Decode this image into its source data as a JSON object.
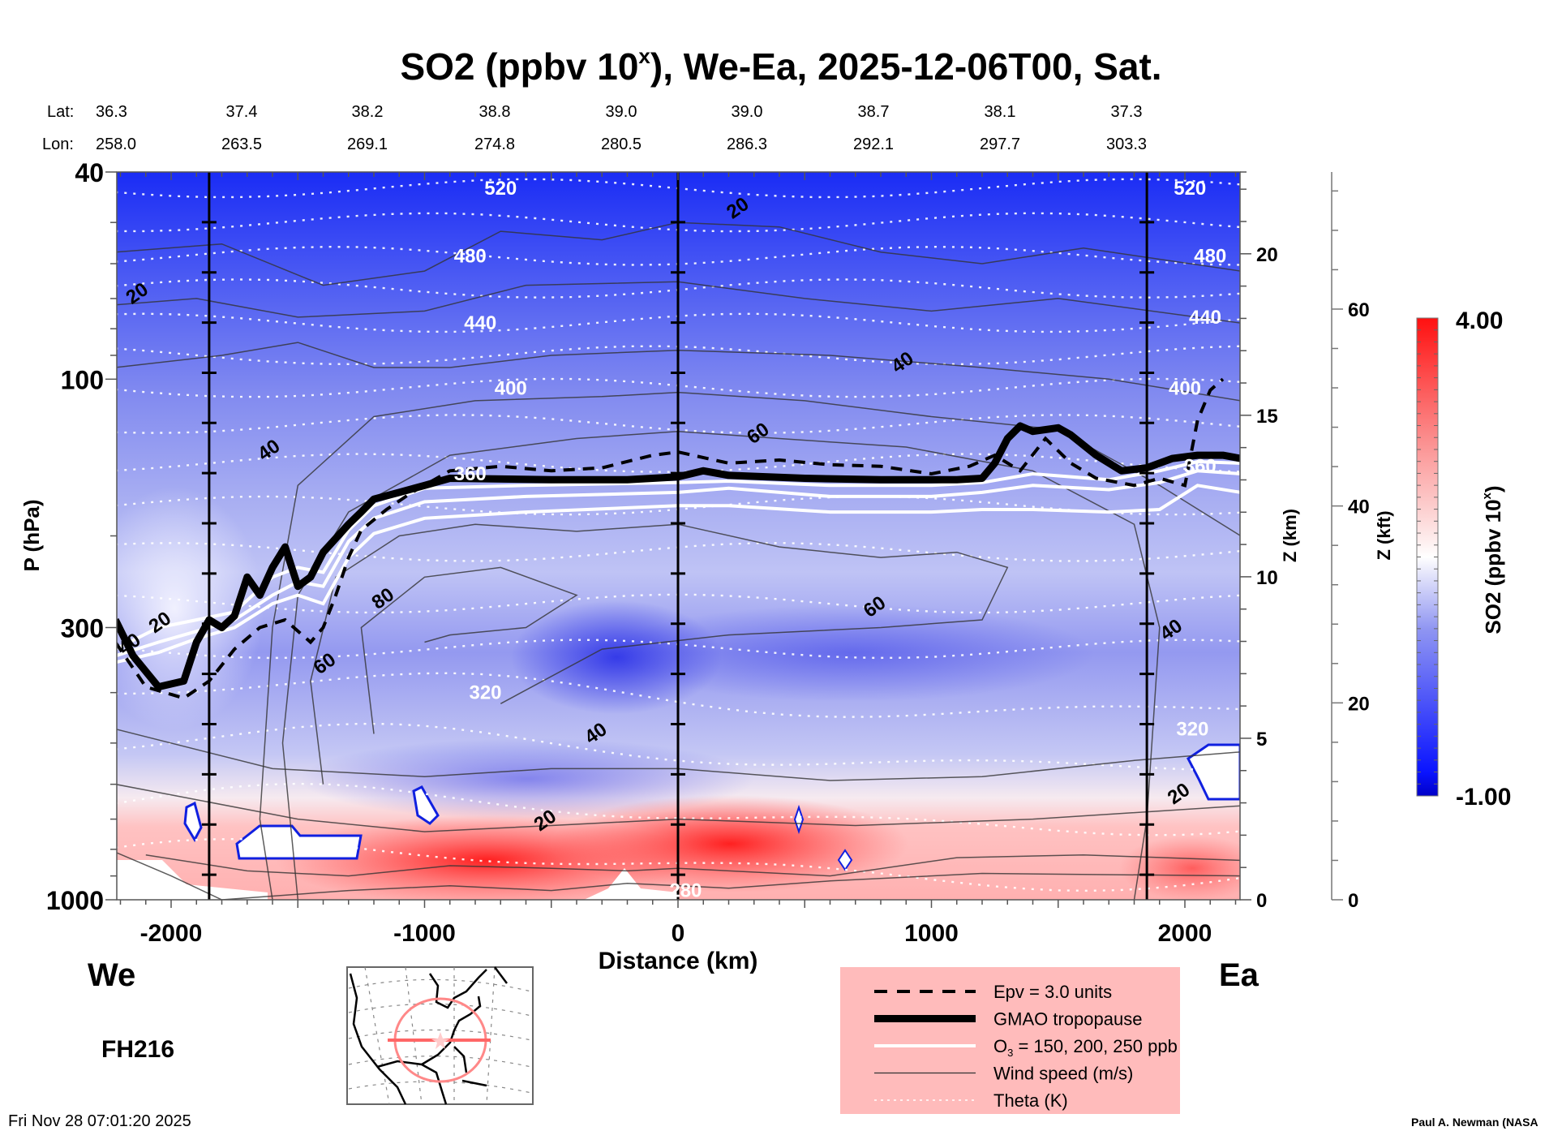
{
  "chart_data": {
    "type": "heatmap",
    "title": "SO2 (ppbv 10",
    "title_superscript": "x",
    "title_suffix": "), We-Ea, 2025-12-06T00, Sat.",
    "xlabel": "Distance (km)",
    "ylabel": "P (hPa)",
    "y2label": "Z (km)",
    "y3label": "Z (kft)",
    "xlim": [
      -2220,
      2220
    ],
    "ylim_hpa": [
      1000,
      40
    ],
    "yscale": "log",
    "x_ticks": [
      {
        "value": -2000,
        "label": "-2000"
      },
      {
        "value": -1000,
        "label": "-1000"
      },
      {
        "value": 0,
        "label": "0"
      },
      {
        "value": 1000,
        "label": "1000"
      },
      {
        "value": 2000,
        "label": "2000"
      }
    ],
    "y_ticks": [
      {
        "value": 40,
        "label": "40"
      },
      {
        "value": 100,
        "label": "100"
      },
      {
        "value": 300,
        "label": "300"
      },
      {
        "value": 1000,
        "label": "1000"
      }
    ],
    "z_km_ticks": [
      {
        "value": 0,
        "label": "0"
      },
      {
        "value": 5,
        "label": "5"
      },
      {
        "value": 10,
        "label": "10"
      },
      {
        "value": 15,
        "label": "15"
      },
      {
        "value": 20,
        "label": "20"
      }
    ],
    "z_kft_ticks": [
      {
        "value": 0,
        "label": "0"
      },
      {
        "value": 20,
        "label": "20"
      },
      {
        "value": 40,
        "label": "40"
      },
      {
        "value": 60,
        "label": "60"
      }
    ],
    "lat_lon_header": {
      "lat_label": "Lat:",
      "lon_label": "Lon:",
      "columns": [
        {
          "lat": "36.3",
          "lon": "258.0"
        },
        {
          "lat": "37.4",
          "lon": "263.5"
        },
        {
          "lat": "38.2",
          "lon": "269.1"
        },
        {
          "lat": "38.8",
          "lon": "274.8"
        },
        {
          "lat": "39.0",
          "lon": "280.5"
        },
        {
          "lat": "39.0",
          "lon": "286.3"
        },
        {
          "lat": "38.7",
          "lon": "292.1"
        },
        {
          "lat": "38.1",
          "lon": "297.7"
        },
        {
          "lat": "37.3",
          "lon": "303.3"
        }
      ]
    },
    "colorbar": {
      "label": "SO2 (ppbv 10",
      "label_superscript": "x",
      "label_suffix": ")",
      "min": -1.0,
      "max": 4.0,
      "min_label": "-1.00",
      "max_label": "4.00",
      "colors": {
        "low": "#0000ff",
        "mid": "#ffffff",
        "high": "#ff0000"
      }
    },
    "vertical_markers_km": [
      -1850,
      0,
      1850
    ],
    "tropopause": {
      "name": "GMAO tropopause",
      "points": [
        [
          -2220,
          290
        ],
        [
          -2150,
          340
        ],
        [
          -2050,
          390
        ],
        [
          -1950,
          380
        ],
        [
          -1900,
          320
        ],
        [
          -1850,
          290
        ],
        [
          -1800,
          300
        ],
        [
          -1750,
          285
        ],
        [
          -1700,
          240
        ],
        [
          -1650,
          260
        ],
        [
          -1600,
          230
        ],
        [
          -1550,
          210
        ],
        [
          -1500,
          250
        ],
        [
          -1450,
          240
        ],
        [
          -1400,
          215
        ],
        [
          -1300,
          190
        ],
        [
          -1250,
          180
        ],
        [
          -1200,
          170
        ],
        [
          -1100,
          165
        ],
        [
          -1000,
          160
        ],
        [
          -900,
          155
        ],
        [
          -500,
          156
        ],
        [
          -200,
          156
        ],
        [
          0,
          154
        ],
        [
          100,
          150
        ],
        [
          200,
          153
        ],
        [
          500,
          155
        ],
        [
          800,
          156
        ],
        [
          1100,
          156
        ],
        [
          1200,
          155
        ],
        [
          1250,
          145
        ],
        [
          1300,
          130
        ],
        [
          1350,
          123
        ],
        [
          1400,
          126
        ],
        [
          1500,
          124
        ],
        [
          1550,
          128
        ],
        [
          1650,
          140
        ],
        [
          1750,
          150
        ],
        [
          1850,
          148
        ],
        [
          1950,
          142
        ],
        [
          2050,
          140
        ],
        [
          2150,
          140
        ],
        [
          2220,
          142
        ]
      ]
    },
    "epv_contour": {
      "name": "Epv = 3.0 units",
      "points": [
        [
          -2220,
          320
        ],
        [
          -2100,
          390
        ],
        [
          -1950,
          410
        ],
        [
          -1850,
          380
        ],
        [
          -1750,
          330
        ],
        [
          -1650,
          300
        ],
        [
          -1550,
          290
        ],
        [
          -1450,
          320
        ],
        [
          -1400,
          300
        ],
        [
          -1350,
          260
        ],
        [
          -1300,
          220
        ],
        [
          -1250,
          195
        ],
        [
          -1150,
          178
        ],
        [
          -1050,
          165
        ],
        [
          -900,
          150
        ],
        [
          -700,
          147
        ],
        [
          -500,
          150
        ],
        [
          -300,
          148
        ],
        [
          -100,
          140
        ],
        [
          0,
          138
        ],
        [
          200,
          145
        ],
        [
          400,
          143
        ],
        [
          600,
          146
        ],
        [
          800,
          147
        ],
        [
          1000,
          152
        ],
        [
          1150,
          147
        ],
        [
          1250,
          140
        ],
        [
          1350,
          150
        ],
        [
          1450,
          130
        ],
        [
          1550,
          145
        ],
        [
          1650,
          155
        ],
        [
          1800,
          160
        ],
        [
          1900,
          155
        ],
        [
          2000,
          160
        ],
        [
          2050,
          120
        ],
        [
          2100,
          105
        ],
        [
          2150,
          100
        ]
      ]
    },
    "ozone_contours": {
      "name": "O3 = 150, 200, 250 ppb",
      "lines": [
        {
          "ppb": 150,
          "points": [
            [
              -2220,
              330
            ],
            [
              -2050,
              300
            ],
            [
              -1900,
              290
            ],
            [
              -1750,
              280
            ],
            [
              -1600,
              240
            ],
            [
              -1500,
              230
            ],
            [
              -1400,
              235
            ],
            [
              -1300,
              195
            ],
            [
              -1200,
              175
            ],
            [
              -1000,
              162
            ],
            [
              -600,
              160
            ],
            [
              0,
              158
            ],
            [
              200,
              157
            ],
            [
              600,
              160
            ],
            [
              1000,
              160
            ],
            [
              1200,
              158
            ],
            [
              1400,
              152
            ],
            [
              1700,
              156
            ],
            [
              1900,
              150
            ],
            [
              2050,
              144
            ],
            [
              2220,
              145
            ]
          ]
        },
        {
          "ppb": 200,
          "points": [
            [
              -2220,
              340
            ],
            [
              -2050,
              320
            ],
            [
              -1900,
              305
            ],
            [
              -1750,
              290
            ],
            [
              -1600,
              260
            ],
            [
              -1500,
              245
            ],
            [
              -1400,
              250
            ],
            [
              -1300,
              205
            ],
            [
              -1200,
              185
            ],
            [
              -1000,
              172
            ],
            [
              -600,
              168
            ],
            [
              0,
              165
            ],
            [
              200,
              162
            ],
            [
              600,
              168
            ],
            [
              1000,
              168
            ],
            [
              1200,
              165
            ],
            [
              1400,
              160
            ],
            [
              1700,
              163
            ],
            [
              1900,
              158
            ],
            [
              2050,
              150
            ],
            [
              2220,
              152
            ]
          ]
        },
        {
          "ppb": 250,
          "points": [
            [
              -2220,
              350
            ],
            [
              -2050,
              335
            ],
            [
              -1900,
              315
            ],
            [
              -1750,
              300
            ],
            [
              -1600,
              270
            ],
            [
              -1500,
              260
            ],
            [
              -1400,
              270
            ],
            [
              -1300,
              220
            ],
            [
              -1200,
              198
            ],
            [
              -1000,
              185
            ],
            [
              -600,
              180
            ],
            [
              0,
              175
            ],
            [
              200,
              175
            ],
            [
              600,
              180
            ],
            [
              1000,
              180
            ],
            [
              1200,
              178
            ],
            [
              1400,
              178
            ],
            [
              1700,
              180
            ],
            [
              1900,
              178
            ],
            [
              2050,
              160
            ],
            [
              2220,
              165
            ]
          ]
        }
      ]
    },
    "wind_speed_contours": {
      "name": "Wind speed (m/s)",
      "labels": [
        {
          "text": "20",
          "x_km": -2120,
          "p_hpa": 70
        },
        {
          "text": "40",
          "x_km": -1600,
          "p_hpa": 140
        },
        {
          "text": "80",
          "x_km": -1150,
          "p_hpa": 270
        },
        {
          "text": "60",
          "x_km": -1380,
          "p_hpa": 360
        },
        {
          "text": "40",
          "x_km": -310,
          "p_hpa": 490
        },
        {
          "text": "20",
          "x_km": 250,
          "p_hpa": 48
        },
        {
          "text": "40",
          "x_km": 900,
          "p_hpa": 95
        },
        {
          "text": "60",
          "x_km": 330,
          "p_hpa": 130
        },
        {
          "text": "60",
          "x_km": 790,
          "p_hpa": 280
        },
        {
          "text": "40",
          "x_km": 1960,
          "p_hpa": 310
        },
        {
          "text": "20",
          "x_km": 1990,
          "p_hpa": 640
        },
        {
          "text": "20",
          "x_km": -510,
          "p_hpa": 720
        },
        {
          "text": "20",
          "x_km": -2030,
          "p_hpa": 300
        },
        {
          "text": "40",
          "x_km": -2150,
          "p_hpa": 330
        }
      ]
    },
    "theta_contours": {
      "name": "Theta (K)",
      "labels": [
        {
          "text": "520",
          "x_km": -700,
          "p_hpa": 43
        },
        {
          "text": "480",
          "x_km": -820,
          "p_hpa": 58
        },
        {
          "text": "440",
          "x_km": -780,
          "p_hpa": 78
        },
        {
          "text": "400",
          "x_km": -660,
          "p_hpa": 104
        },
        {
          "text": "360",
          "x_km": -820,
          "p_hpa": 152
        },
        {
          "text": "320",
          "x_km": -760,
          "p_hpa": 400
        },
        {
          "text": "280",
          "x_km": 30,
          "p_hpa": 960
        },
        {
          "text": "520",
          "x_km": 2020,
          "p_hpa": 43
        },
        {
          "text": "480",
          "x_km": 2100,
          "p_hpa": 58
        },
        {
          "text": "440",
          "x_km": 2080,
          "p_hpa": 76
        },
        {
          "text": "400",
          "x_km": 2000,
          "p_hpa": 104
        },
        {
          "text": "360",
          "x_km": 2060,
          "p_hpa": 147
        },
        {
          "text": "320",
          "x_km": 2030,
          "p_hpa": 470
        }
      ]
    },
    "legend": {
      "placement": "bottom-center",
      "entries": [
        {
          "style": "dashed",
          "label": "Epv = 3.0 units"
        },
        {
          "style": "thick",
          "label": "GMAO tropopause"
        },
        {
          "style": "white",
          "label_prefix": "O",
          "label_sub": "3",
          "label_suffix": " = 150, 200, 250 ppb"
        },
        {
          "style": "thin",
          "label": "Wind speed (m/s)"
        },
        {
          "style": "dotted",
          "label": "Theta (K)"
        }
      ],
      "background": "#ffbbbb"
    }
  },
  "footer": {
    "west_label": "We",
    "east_label": "Ea",
    "forecast_hour": "FH216",
    "timestamp": "Fri Nov 28 07:01:20 2025",
    "credit": "Paul A. Newman (NASA"
  }
}
